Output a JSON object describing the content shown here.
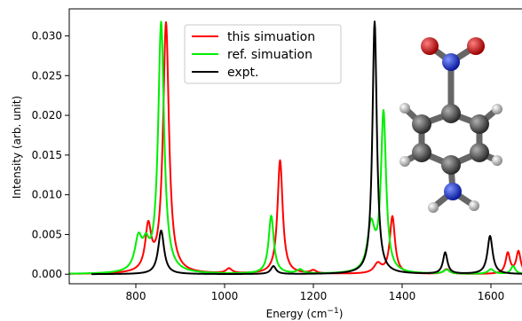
{
  "chart_data": {
    "type": "line",
    "xlabel": "Energy (cm",
    "xlabel_sup": "−1",
    "xlabel_tail": ")",
    "ylabel": "Intensity (arb. unit)",
    "xlim": [
      650,
      1690
    ],
    "ylim": [
      -0.0012,
      0.0334
    ],
    "xticks": [
      800,
      1000,
      1200,
      1400,
      1600
    ],
    "yticks": [
      0.0,
      0.005,
      0.01,
      0.015,
      0.02,
      0.025,
      0.03
    ],
    "ytick_labels": [
      "0.000",
      "0.005",
      "0.010",
      "0.015",
      "0.020",
      "0.025",
      "0.030"
    ],
    "grid": false,
    "legend_position": "top-center",
    "series": [
      {
        "name": "this simuation",
        "color": "#ff0000",
        "x_start": 650,
        "x_end": 1690,
        "baseline": 0.0,
        "peaks": [
          {
            "x": 828,
            "h": 0.0055,
            "w": 8
          },
          {
            "x": 868,
            "h": 0.0315,
            "w": 8
          },
          {
            "x": 1010,
            "h": 0.0006,
            "w": 8
          },
          {
            "x": 1125,
            "h": 0.0143,
            "w": 7
          },
          {
            "x": 1200,
            "h": 0.0004,
            "w": 8
          },
          {
            "x": 1345,
            "h": 0.0012,
            "w": 10
          },
          {
            "x": 1378,
            "h": 0.0072,
            "w": 7
          },
          {
            "x": 1500,
            "h": 0.0006,
            "w": 8
          },
          {
            "x": 1638,
            "h": 0.0026,
            "w": 6
          },
          {
            "x": 1662,
            "h": 0.0028,
            "w": 6
          }
        ]
      },
      {
        "name": "ref. simuation",
        "color": "#00ee00",
        "x_start": 650,
        "x_end": 1690,
        "baseline": 0.0,
        "peaks": [
          {
            "x": 806,
            "h": 0.004,
            "w": 10
          },
          {
            "x": 823,
            "h": 0.0025,
            "w": 8
          },
          {
            "x": 857,
            "h": 0.0315,
            "w": 8
          },
          {
            "x": 1105,
            "h": 0.0073,
            "w": 7
          },
          {
            "x": 1170,
            "h": 0.0005,
            "w": 8
          },
          {
            "x": 1330,
            "h": 0.0058,
            "w": 10
          },
          {
            "x": 1358,
            "h": 0.02,
            "w": 7
          },
          {
            "x": 1500,
            "h": 0.0005,
            "w": 8
          },
          {
            "x": 1600,
            "h": 0.0006,
            "w": 8
          },
          {
            "x": 1650,
            "h": 0.001,
            "w": 6
          }
        ]
      },
      {
        "name": "expt.",
        "color": "#000000",
        "x_start": 700,
        "x_end": 1690,
        "baseline": 0.0,
        "peaks": [
          {
            "x": 857,
            "h": 0.0055,
            "w": 8
          },
          {
            "x": 1110,
            "h": 0.001,
            "w": 7
          },
          {
            "x": 1338,
            "h": 0.0318,
            "w": 6
          },
          {
            "x": 1497,
            "h": 0.0027,
            "w": 6
          },
          {
            "x": 1598,
            "h": 0.0048,
            "w": 7
          }
        ]
      }
    ]
  },
  "molecule": {
    "atom_colors": {
      "carbon": "#555555",
      "hydrogen": "#c8c8c8",
      "nitrogen": "#1030e0",
      "oxygen": "#e01010"
    }
  }
}
